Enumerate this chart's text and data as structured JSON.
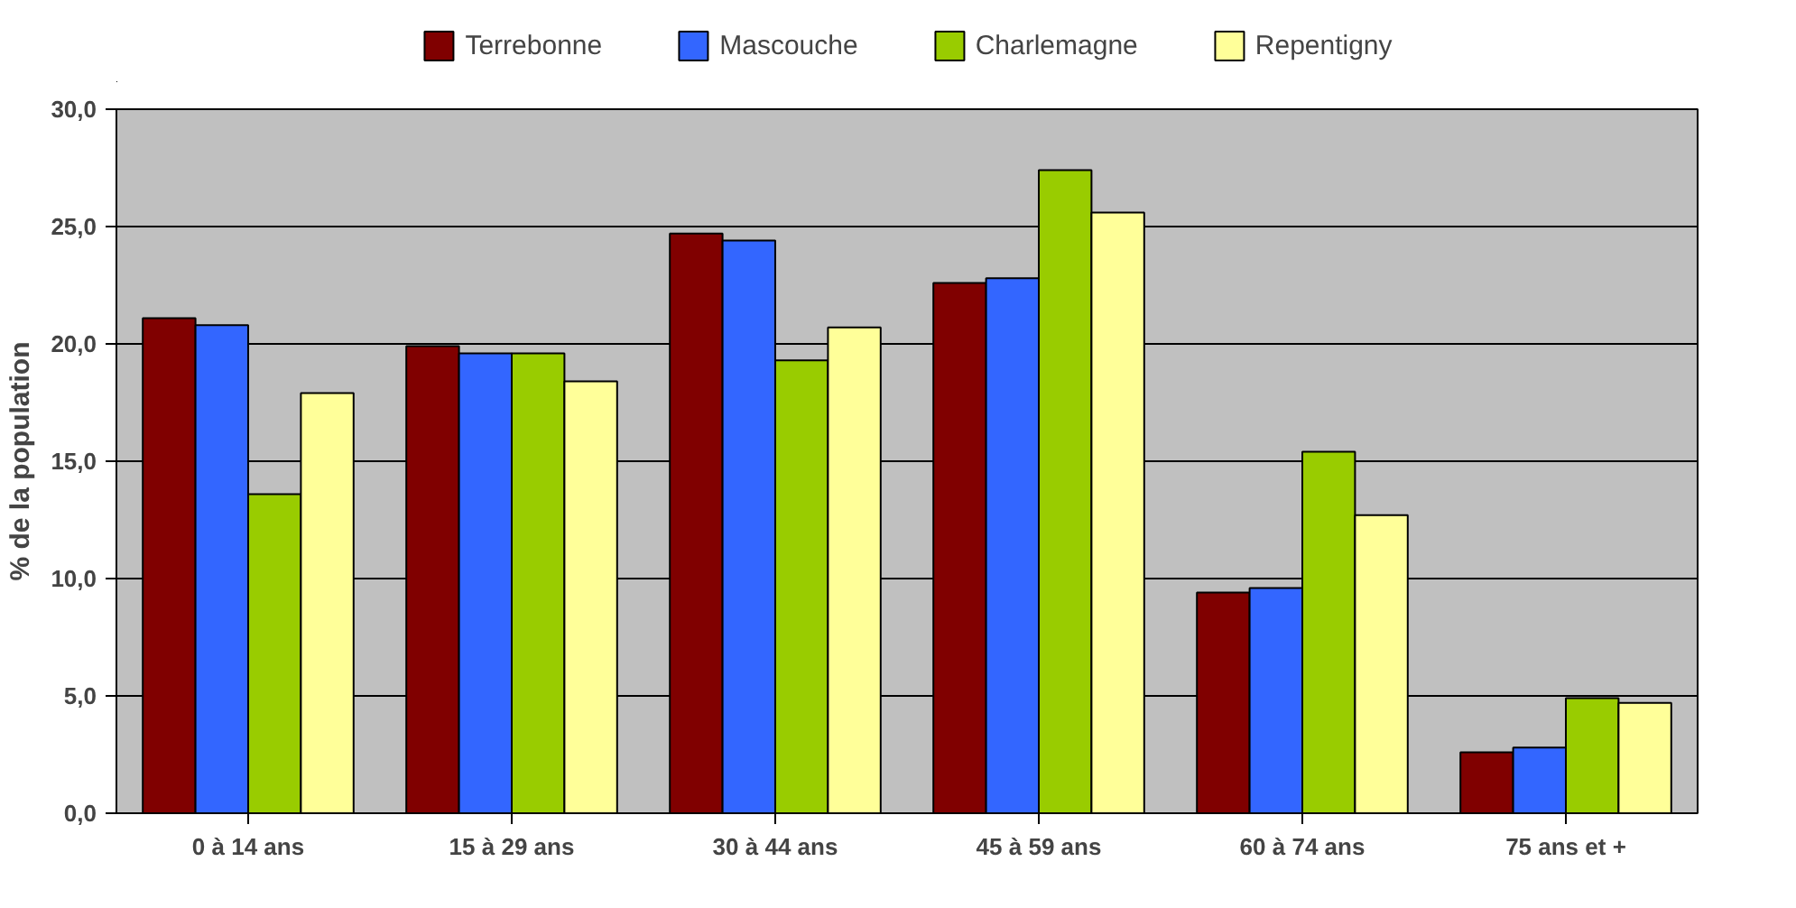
{
  "chart_data": {
    "type": "bar",
    "ylabel": "% de la population",
    "categories": [
      "0 à 14 ans",
      "15 à 29 ans",
      "30 à 44 ans",
      "45 à 59 ans",
      "60 à 74 ans",
      "75 ans et +"
    ],
    "series": [
      {
        "name": "Terrebonne",
        "color": "#800000",
        "values": [
          21.1,
          19.9,
          24.7,
          22.6,
          9.4,
          2.6
        ]
      },
      {
        "name": "Mascouche",
        "color": "#3366ff",
        "values": [
          20.8,
          19.6,
          24.4,
          22.8,
          9.6,
          2.8
        ]
      },
      {
        "name": "Charlemagne",
        "color": "#99cc00",
        "values": [
          13.6,
          19.6,
          19.3,
          27.4,
          15.4,
          4.9
        ]
      },
      {
        "name": "Repentigny",
        "color": "#ffff99",
        "values": [
          17.9,
          18.4,
          20.7,
          25.6,
          12.7,
          4.7
        ]
      }
    ],
    "ylim": [
      0,
      30
    ],
    "yticks": [
      {
        "value": 0,
        "label": "0,0"
      },
      {
        "value": 5,
        "label": "5,0"
      },
      {
        "value": 10,
        "label": "10,0"
      },
      {
        "value": 15,
        "label": "15,0"
      },
      {
        "value": 20,
        "label": "20,0"
      },
      {
        "value": 25,
        "label": "25,0"
      },
      {
        "value": 30,
        "label": "30,0"
      }
    ],
    "grid": "y",
    "legend": "top"
  }
}
